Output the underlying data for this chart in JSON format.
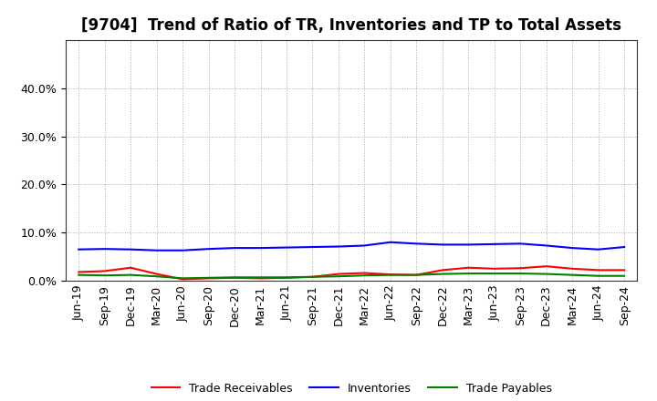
{
  "title": "[9704]  Trend of Ratio of TR, Inventories and TP to Total Assets",
  "x_labels": [
    "Jun-19",
    "Sep-19",
    "Dec-19",
    "Mar-20",
    "Jun-20",
    "Sep-20",
    "Dec-20",
    "Mar-21",
    "Jun-21",
    "Sep-21",
    "Dec-21",
    "Mar-22",
    "Jun-22",
    "Sep-22",
    "Dec-22",
    "Mar-23",
    "Jun-23",
    "Sep-23",
    "Dec-23",
    "Mar-24",
    "Jun-24",
    "Sep-24"
  ],
  "trade_receivables": [
    0.018,
    0.02,
    0.027,
    0.014,
    0.003,
    0.005,
    0.006,
    0.005,
    0.006,
    0.008,
    0.014,
    0.016,
    0.013,
    0.012,
    0.022,
    0.027,
    0.025,
    0.026,
    0.03,
    0.025,
    0.022,
    0.022
  ],
  "inventories": [
    0.065,
    0.066,
    0.065,
    0.063,
    0.063,
    0.066,
    0.068,
    0.068,
    0.069,
    0.07,
    0.071,
    0.073,
    0.08,
    0.077,
    0.075,
    0.075,
    0.076,
    0.077,
    0.073,
    0.068,
    0.065,
    0.07
  ],
  "trade_payables": [
    0.012,
    0.011,
    0.012,
    0.009,
    0.005,
    0.006,
    0.007,
    0.007,
    0.007,
    0.008,
    0.009,
    0.011,
    0.012,
    0.012,
    0.014,
    0.015,
    0.015,
    0.015,
    0.014,
    0.012,
    0.01,
    0.01
  ],
  "tr_color": "#ff0000",
  "inv_color": "#0000ff",
  "tp_color": "#008000",
  "ylim": [
    0.0,
    0.5
  ],
  "yticks": [
    0.0,
    0.1,
    0.2,
    0.3,
    0.4
  ],
  "background_color": "#ffffff",
  "grid_color": "#aaaaaa",
  "legend_labels": [
    "Trade Receivables",
    "Inventories",
    "Trade Payables"
  ],
  "title_fontsize": 12,
  "tick_fontsize": 9,
  "legend_fontsize": 9
}
